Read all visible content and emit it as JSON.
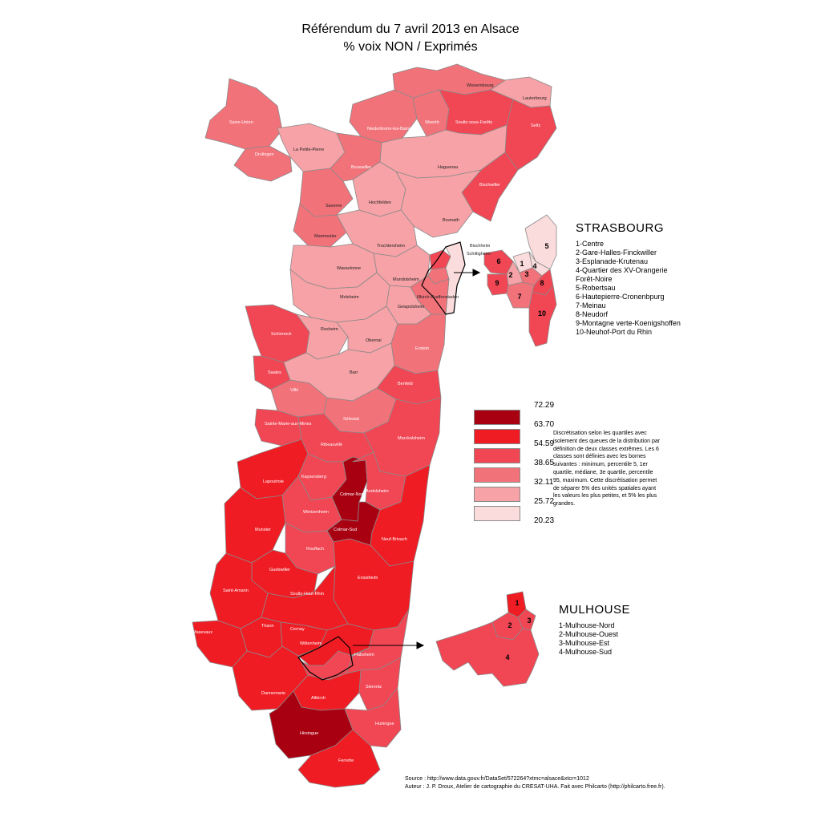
{
  "title": {
    "line1": "Référendum du 7 avril 2013 en Alsace",
    "line2": "% voix NON / Exprimés"
  },
  "colors": {
    "class_1": "#a80011",
    "class_2": "#ef1c24",
    "class_3": "#f14654",
    "class_4": "#f2727a",
    "class_5": "#f6a2a6",
    "class_6": "#fbdcdc",
    "border": "#8a8a8a"
  },
  "legend": {
    "breaks": [
      "72.29",
      "63.70",
      "54.59",
      "38.65",
      "32.11",
      "25.72",
      "20.23"
    ],
    "classes": [
      {
        "from": 63.7,
        "to": 72.29,
        "color": "#a80011"
      },
      {
        "from": 54.59,
        "to": 63.7,
        "color": "#ef1c24"
      },
      {
        "from": 38.65,
        "to": 54.59,
        "color": "#f14654"
      },
      {
        "from": 32.11,
        "to": 38.65,
        "color": "#f2727a"
      },
      {
        "from": 25.72,
        "to": 32.11,
        "color": "#f6a2a6"
      },
      {
        "from": 20.23,
        "to": 25.72,
        "color": "#fbdcdc"
      }
    ]
  },
  "method_note": "Discrétisation selon les quartiles avec isolement des queues de la distribution par définition de deux classes extrêmes. Les 6 classes sont définies avec les bornes suivantes : minimum, percentile 5, 1er quartile, médiane, 3e quartile, percentile 95, maximum. Cette discrétisation permet de séparer 5% des unités spatiales ayant les valeurs les plus petites, et 5% les plus grandes.",
  "strasbourg": {
    "title": "STRASBOURG",
    "items": [
      "1-Centre",
      "2-Gare-Halles-Finckwiller",
      "3-Esplanade-Krutenau",
      "4-Quartier des XV-Orangerie",
      "Forêt-Noire",
      "5-Robertsau",
      "6-Hautepierre-Cronenbpurg",
      "7-Meinau",
      "8-Neudorf",
      "9-Montagne verte-Koenigshoffen",
      "10-Neuhof-Port du Rhin"
    ],
    "numbers": [
      "1",
      "2",
      "3",
      "4",
      "5",
      "6",
      "7",
      "8",
      "9",
      "10"
    ]
  },
  "mulhouse": {
    "title": "MULHOUSE",
    "items": [
      "1-Mulhouse-Nord",
      "2-Mulhouse-Ouest",
      "3-Mulhouse-Est",
      "4-Mulhouse-Sud"
    ],
    "numbers": [
      "1",
      "2",
      "3",
      "4"
    ]
  },
  "cantons": [
    "Wissembourg",
    "Lauterbourg",
    "Sarre-Union",
    "Niederbronn-les-Bains",
    "Woerth",
    "Soultz-sous-Forêts",
    "Seltz",
    "Drulingen",
    "La Petite-Pierre",
    "Bouxwiller",
    "Haguenau",
    "Bischwiller",
    "Saverne",
    "Hochfelden",
    "Brumath",
    "Marmoutier",
    "Truchtersheim",
    "Bischheim",
    "Schiltigheim",
    "Wasselonne",
    "Mundolsheim",
    "Illkirch-Graffenstaden",
    "Molsheim",
    "Geispolsheim",
    "Schirmeck",
    "Rosheim",
    "Obernai",
    "Erstein",
    "Saales",
    "Barr",
    "Benfeld",
    "Villé",
    "Sélestat",
    "Sainte-Marie-aux-Mines",
    "Ribeauvillé",
    "Marckolsheim",
    "Lapoutroie",
    "Kaysersberg",
    "Colmar-Nord",
    "Andolsheim",
    "Wintzenheim",
    "Munster",
    "Colmar-Sud",
    "Neuf-Brisach",
    "Rouffach",
    "Guebwiller",
    "Ensisheim",
    "Saint-Amarin",
    "Soultz-Haut-Rhin",
    "Masevaux",
    "Thann",
    "Cernay",
    "Wittenheim",
    "Habsheim",
    "Dannemarie",
    "Sierentz",
    "Altkirch",
    "Hirsingue",
    "Huningue",
    "Ferrette"
  ],
  "source": {
    "line1": "Source : http://www.data.gouv.fr/DataSet/572264?xtmc=alsace&xtcr=1012",
    "line2": "Auteur : J. P. Droux, Atelier de cartographie du CRESAT-UHA. Fait avec Philcarto (http://philcarto.free.fr)."
  }
}
